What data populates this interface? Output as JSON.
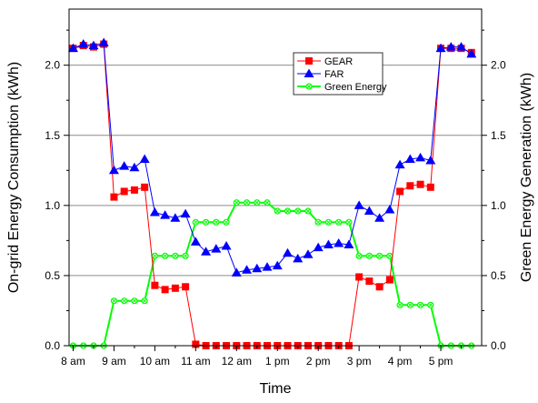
{
  "chart_data": {
    "type": "line",
    "xlabel": "Time",
    "ylabel": "On-grid Energy Consumption (kWh)",
    "y2label": "Green Energy Generation (kWh)",
    "xticks": [
      {
        "label": "8 am",
        "x": 8.0
      },
      {
        "label": "9 am",
        "x": 9.0
      },
      {
        "label": "10 am",
        "x": 10.0
      },
      {
        "label": "11 am",
        "x": 11.0
      },
      {
        "label": "12 am",
        "x": 12.0
      },
      {
        "label": "1 pm",
        "x": 13.0
      },
      {
        "label": "2 pm",
        "x": 14.0
      },
      {
        "label": "3 pm",
        "x": 15.0
      },
      {
        "label": "4 pm",
        "x": 16.0
      },
      {
        "label": "5 pm",
        "x": 17.0
      }
    ],
    "xlim": [
      7.9,
      18.0
    ],
    "ylim": [
      0,
      2.4
    ],
    "y2lim": [
      0,
      2.4
    ],
    "yticks": [
      "0.0",
      "0.5",
      "1.0",
      "1.5",
      "2.0"
    ],
    "y2ticks": [
      "0.0",
      "0.5",
      "1.0",
      "1.5",
      "2.0"
    ],
    "grid": true,
    "legend_position": "top-center",
    "series": [
      {
        "name": "GEAR",
        "color": "#ff0000",
        "marker": "square",
        "x": [
          8.0,
          8.25,
          8.5,
          8.75,
          9.0,
          9.25,
          9.5,
          9.75,
          10.0,
          10.25,
          10.5,
          10.75,
          11.0,
          11.25,
          11.5,
          11.75,
          12.0,
          12.25,
          12.5,
          12.75,
          13.0,
          13.25,
          13.5,
          13.75,
          14.0,
          14.25,
          14.5,
          14.75,
          15.0,
          15.25,
          15.5,
          15.75,
          16.0,
          16.25,
          16.5,
          16.75,
          17.0,
          17.25,
          17.5,
          17.75
        ],
        "y": [
          2.12,
          2.14,
          2.13,
          2.15,
          1.06,
          1.1,
          1.11,
          1.13,
          0.43,
          0.4,
          0.41,
          0.42,
          0.01,
          0.0,
          0.0,
          0.0,
          0.0,
          0.0,
          0.0,
          0.0,
          0.0,
          0.0,
          0.0,
          0.0,
          0.0,
          0.0,
          0.0,
          0.0,
          0.49,
          0.46,
          0.42,
          0.47,
          1.1,
          1.14,
          1.15,
          1.13,
          2.12,
          2.12,
          2.12,
          2.09
        ]
      },
      {
        "name": "FAR",
        "color": "#0000ff",
        "marker": "triangle",
        "x": [
          8.0,
          8.25,
          8.5,
          8.75,
          9.0,
          9.25,
          9.5,
          9.75,
          10.0,
          10.25,
          10.5,
          10.75,
          11.0,
          11.25,
          11.5,
          11.75,
          12.0,
          12.25,
          12.5,
          12.75,
          13.0,
          13.25,
          13.5,
          13.75,
          14.0,
          14.25,
          14.5,
          14.75,
          15.0,
          15.25,
          15.5,
          15.75,
          16.0,
          16.25,
          16.5,
          16.75,
          17.0,
          17.25,
          17.5,
          17.75
        ],
        "y": [
          2.12,
          2.15,
          2.14,
          2.16,
          1.25,
          1.28,
          1.27,
          1.33,
          0.95,
          0.93,
          0.91,
          0.94,
          0.74,
          0.67,
          0.69,
          0.71,
          0.52,
          0.54,
          0.55,
          0.56,
          0.57,
          0.66,
          0.62,
          0.65,
          0.7,
          0.72,
          0.73,
          0.72,
          1.0,
          0.96,
          0.91,
          0.97,
          1.29,
          1.33,
          1.34,
          1.32,
          2.12,
          2.13,
          2.13,
          2.08
        ]
      },
      {
        "name": "Green Energy",
        "color": "#00ff00",
        "marker": "circle-x",
        "x": [
          8.0,
          8.25,
          8.5,
          8.75,
          9.0,
          9.25,
          9.5,
          9.75,
          10.0,
          10.25,
          10.5,
          10.75,
          11.0,
          11.25,
          11.5,
          11.75,
          12.0,
          12.25,
          12.5,
          12.75,
          13.0,
          13.25,
          13.5,
          13.75,
          14.0,
          14.25,
          14.5,
          14.75,
          15.0,
          15.25,
          15.5,
          15.75,
          16.0,
          16.25,
          16.5,
          16.75,
          17.0,
          17.25,
          17.5,
          17.75
        ],
        "y": [
          0.0,
          0.0,
          0.0,
          0.0,
          0.32,
          0.32,
          0.32,
          0.32,
          0.64,
          0.64,
          0.64,
          0.64,
          0.88,
          0.88,
          0.88,
          0.88,
          1.02,
          1.02,
          1.02,
          1.02,
          0.96,
          0.96,
          0.96,
          0.96,
          0.88,
          0.88,
          0.88,
          0.88,
          0.64,
          0.64,
          0.64,
          0.64,
          0.29,
          0.29,
          0.29,
          0.29,
          0.0,
          0.0,
          0.0,
          0.0
        ]
      }
    ]
  }
}
